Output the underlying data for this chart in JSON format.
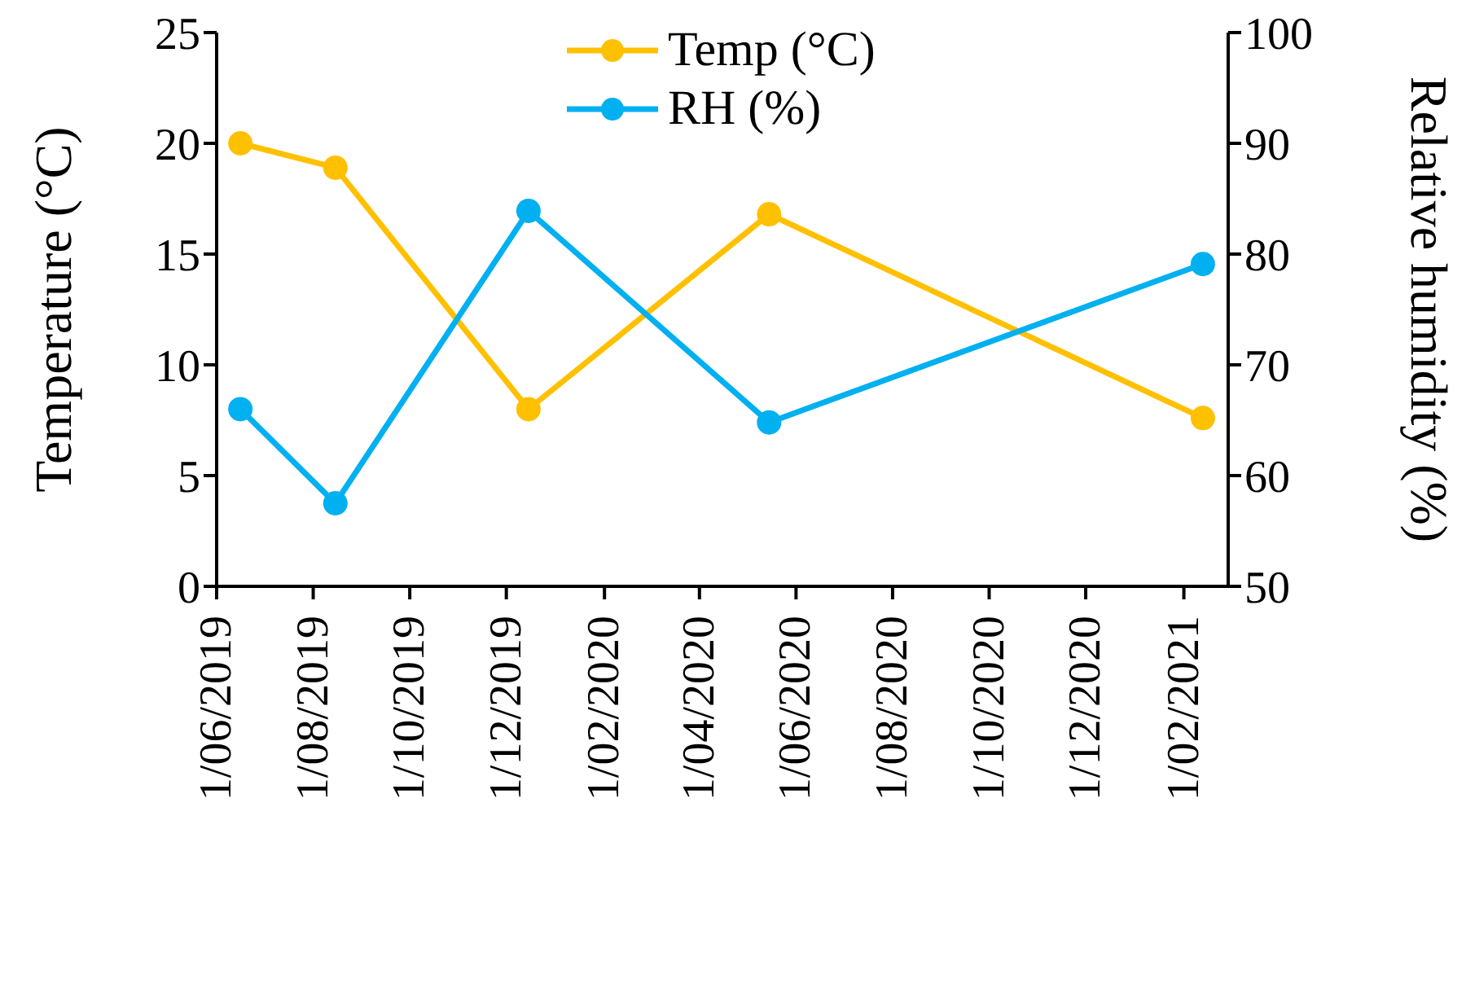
{
  "chart_data": {
    "type": "line",
    "xlabel": null,
    "ylabel": "Temperature (°C)",
    "y2label": "Relative humidity (%)",
    "x": [
      "2019-06-16",
      "2019-08-15",
      "2019-12-15",
      "2020-05-15",
      "2021-02-13"
    ],
    "series": [
      {
        "name": "Temp (°C)",
        "color": "#ffc000",
        "values": [
          20.0,
          18.9,
          8.0,
          16.8,
          7.6
        ]
      },
      {
        "name": "RH (%)",
        "color": "#00b0f0",
        "axis": "y2",
        "values": [
          66.0,
          57.5,
          83.9,
          64.8,
          79.1
        ]
      }
    ],
    "xlim": [
      "2019-06-01",
      "2021-03-01"
    ],
    "xticks": [
      {
        "value": "2019-06-01",
        "label": "1/06/2019"
      },
      {
        "value": "2019-08-01",
        "label": "1/08/2019"
      },
      {
        "value": "2019-10-01",
        "label": "1/10/2019"
      },
      {
        "value": "2019-12-01",
        "label": "1/12/2019"
      },
      {
        "value": "2020-02-01",
        "label": "1/02/2020"
      },
      {
        "value": "2020-04-01",
        "label": "1/04/2020"
      },
      {
        "value": "2020-06-01",
        "label": "1/06/2020"
      },
      {
        "value": "2020-08-01",
        "label": "1/08/2020"
      },
      {
        "value": "2020-10-01",
        "label": "1/10/2020"
      },
      {
        "value": "2020-12-01",
        "label": "1/12/2020"
      },
      {
        "value": "2021-02-01",
        "label": "1/02/2021"
      }
    ],
    "ylim": [
      0,
      25
    ],
    "yticks": [
      0,
      5,
      10,
      15,
      20,
      25
    ],
    "y2lim": [
      50,
      100
    ],
    "y2ticks": [
      50,
      60,
      70,
      80,
      90,
      100
    ],
    "grid": false,
    "legend": "top",
    "marker": "circle",
    "line_style": "solid"
  }
}
